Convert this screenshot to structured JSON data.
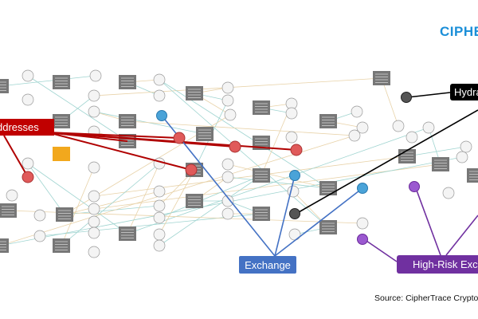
{
  "logo": {
    "text": "CIPHE",
    "color": "#1b8fd8"
  },
  "callouts": {
    "addresses": {
      "label": "ddresses",
      "color": "#c00000"
    },
    "hydra": {
      "label": "Hydra",
      "color": "#000000"
    },
    "exchange": {
      "label": "Exchange",
      "color": "#4472c4"
    },
    "high_risk": {
      "label": "High-Risk Exch",
      "color": "#7030a0"
    }
  },
  "source": "Source: CipherTrace Crypto",
  "node_colors": {
    "transaction": "#777777",
    "address": "#f4f4f4",
    "flagged": "#e05a5a",
    "exchange": "#4aa3d8",
    "darknet": "#555555",
    "high_risk": "#9b59d0",
    "highlight": "#f2a81d"
  },
  "edge_colors": [
    "#9fd4d0",
    "#e8d2a8"
  ]
}
